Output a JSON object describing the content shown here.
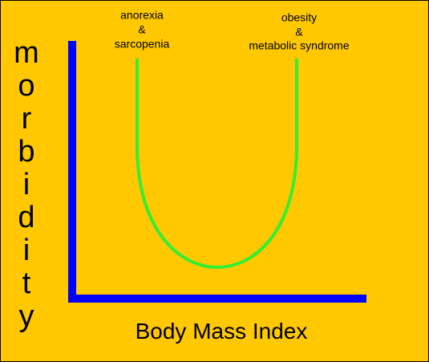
{
  "y_axis_label": "morbidity",
  "x_axis_label": "Body Mass Index",
  "annotations": [
    {
      "lines": [
        "anorexia",
        "&",
        "sarcopenia"
      ]
    },
    {
      "lines": [
        "obesity",
        "&",
        "metabolic syndrome"
      ]
    }
  ]
}
